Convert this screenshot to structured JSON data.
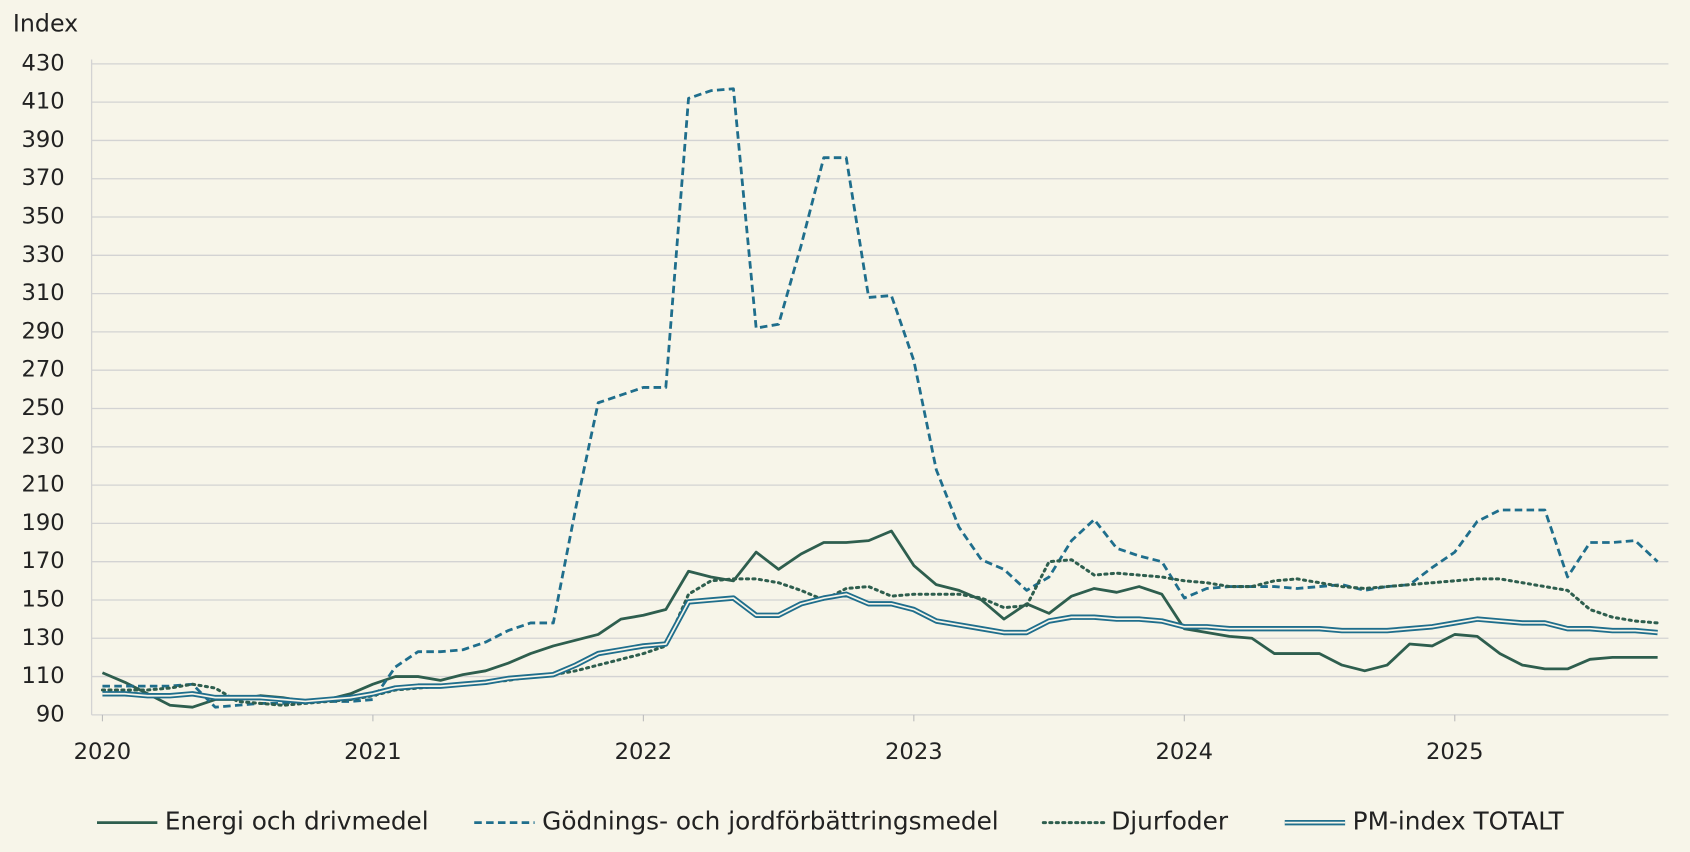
{
  "chart_data": {
    "type": "line",
    "y_label": "Index",
    "x": [
      2020,
      2020.083,
      2020.167,
      2020.25,
      2020.333,
      2020.417,
      2020.5,
      2020.583,
      2020.667,
      2020.75,
      2020.833,
      2020.917,
      2021,
      2021.083,
      2021.167,
      2021.25,
      2021.333,
      2021.417,
      2021.5,
      2021.583,
      2021.667,
      2021.75,
      2021.833,
      2021.917,
      2022,
      2022.083,
      2022.167,
      2022.25,
      2022.333,
      2022.417,
      2022.5,
      2022.583,
      2022.667,
      2022.75,
      2022.833,
      2022.917,
      2023,
      2023.083,
      2023.167,
      2023.25,
      2023.333,
      2023.417,
      2023.5,
      2023.583,
      2023.667,
      2023.75,
      2023.833,
      2023.917,
      2024,
      2024.083,
      2024.167,
      2024.25,
      2024.333,
      2024.417,
      2024.5,
      2024.583,
      2024.667,
      2024.75,
      2024.833,
      2024.917,
      2025,
      2025.083,
      2025.167,
      2025.25,
      2025.333,
      2025.417,
      2025.5,
      2025.583,
      2025.667,
      2025.75
    ],
    "series": [
      {
        "name": "Energi och drivmedel",
        "color": "#2e5e4e",
        "style": "solid",
        "values": [
          112,
          107,
          101,
          95,
          94,
          98,
          98,
          100,
          99,
          97,
          98,
          101,
          106,
          110,
          110,
          108,
          111,
          113,
          117,
          122,
          126,
          129,
          132,
          140,
          142,
          145,
          165,
          162,
          160,
          175,
          166,
          174,
          180,
          180,
          181,
          186,
          168,
          158,
          155,
          150,
          140,
          148,
          143,
          152,
          156,
          154,
          157,
          153,
          135,
          133,
          131,
          130,
          122,
          122,
          122,
          116,
          113,
          116,
          127,
          126,
          132,
          131,
          122,
          116,
          114,
          114,
          119,
          120,
          120,
          120
        ]
      },
      {
        "name": "Gödnings- och jordförbättringsmedel",
        "color": "#1f6e8c",
        "style": "dashed",
        "values": [
          105,
          105,
          105,
          105,
          106,
          94,
          95,
          96,
          96,
          97,
          97,
          97,
          98,
          115,
          123,
          123,
          124,
          128,
          134,
          138,
          138,
          198,
          253,
          257,
          261,
          261,
          412,
          416,
          417,
          292,
          294,
          335,
          381,
          381,
          308,
          309,
          275,
          218,
          188,
          171,
          166,
          155,
          162,
          181,
          192,
          177,
          173,
          170,
          151,
          156,
          157,
          157,
          157,
          156,
          157,
          158,
          155,
          157,
          158,
          167,
          175,
          191,
          197,
          197,
          197,
          162,
          180,
          180,
          181,
          170
        ]
      },
      {
        "name": "Djurfoder",
        "color": "#2e5e4e",
        "style": "dotted",
        "values": [
          103,
          103,
          103,
          104,
          106,
          104,
          97,
          96,
          95,
          96,
          97,
          98,
          100,
          103,
          104,
          105,
          106,
          107,
          108,
          110,
          111,
          113,
          116,
          119,
          122,
          126,
          153,
          160,
          161,
          161,
          159,
          155,
          150,
          156,
          157,
          152,
          153,
          153,
          153,
          151,
          146,
          147,
          170,
          171,
          163,
          164,
          163,
          162,
          160,
          159,
          157,
          157,
          160,
          161,
          159,
          157,
          156,
          157,
          158,
          159,
          160,
          161,
          161,
          159,
          157,
          155,
          145,
          141,
          139,
          138
        ]
      },
      {
        "name": "PM-index TOTALT",
        "color": "#1f6e8c",
        "style": "double",
        "values": [
          101,
          101,
          100,
          100,
          101,
          99,
          99,
          99,
          98,
          97,
          98,
          99,
          101,
          104,
          105,
          105,
          106,
          107,
          109,
          110,
          111,
          116,
          122,
          124,
          126,
          127,
          149,
          150,
          151,
          142,
          142,
          148,
          151,
          153,
          148,
          148,
          145,
          139,
          137,
          135,
          133,
          133,
          139,
          141,
          141,
          140,
          140,
          139,
          136,
          136,
          135,
          135,
          135,
          135,
          135,
          134,
          134,
          134,
          135,
          136,
          138,
          140,
          139,
          138,
          138,
          135,
          135,
          134,
          134,
          133
        ]
      }
    ],
    "xlim": [
      2019.96,
      2025.79
    ],
    "xticks": [
      2020,
      2021,
      2022,
      2023,
      2024,
      2025
    ],
    "ylim": [
      90,
      430
    ],
    "yticks": [
      90,
      110,
      130,
      150,
      170,
      190,
      210,
      230,
      250,
      270,
      290,
      310,
      330,
      350,
      370,
      390,
      410,
      430
    ],
    "grid": true,
    "legend": "bottom"
  }
}
